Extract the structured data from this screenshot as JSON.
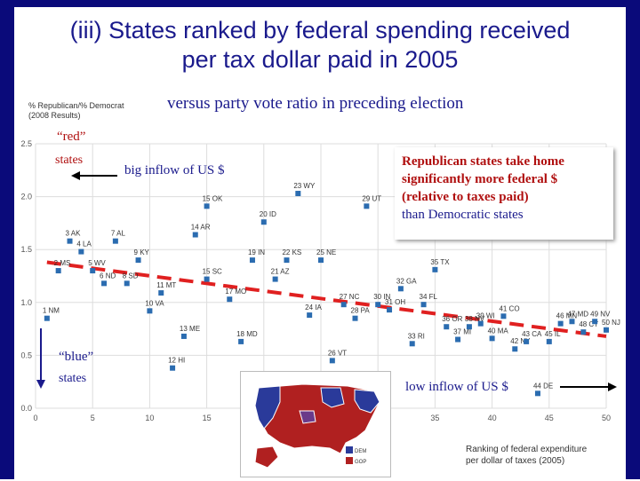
{
  "slide": {
    "title": "(iii) States ranked by federal spending received\nper tax dollar paid in 2005",
    "subtitle": "versus party vote ratio in preceding election"
  },
  "annotations": {
    "red_label": "“red”",
    "red_states": "states",
    "blue_label": "“blue”",
    "blue_states": "states",
    "big_inflow": "big inflow of US $",
    "low_inflow": "low inflow of US $",
    "callout_red": "Republican states take home significantly more federal $ (relative to taxes paid)",
    "callout_blue": "than Democratic states"
  },
  "map": {
    "legend_dem": "DEM",
    "legend_gop": "GOP"
  },
  "colors": {
    "frame": "#0a0a7a",
    "title": "#1a1a8c",
    "point": "#2b6cb0",
    "trend": "#e02020",
    "red_text": "#b01010"
  },
  "chart_data": {
    "type": "scatter",
    "title": "",
    "ylabel": "% Republican/% Democrat\n(2008 Results)",
    "xlabel": "Ranking of federal expenditure\nper dollar of taxes (2005)",
    "xlim": [
      0,
      50
    ],
    "ylim": [
      0,
      2.5
    ],
    "xticks": [
      "0",
      "5",
      "10",
      "15",
      "20",
      "25",
      "30",
      "35",
      "40",
      "45",
      "50"
    ],
    "yticks": [
      "0.0",
      "0.5",
      "1.0",
      "1.5",
      "2.0",
      "2.5"
    ],
    "grid": true,
    "points": [
      {
        "label": "1 NM",
        "x": 1,
        "y": 0.85
      },
      {
        "label": "2 MS",
        "x": 2,
        "y": 1.3
      },
      {
        "label": "3 AK",
        "x": 3,
        "y": 1.58
      },
      {
        "label": "4 LA",
        "x": 4,
        "y": 1.48
      },
      {
        "label": "5 WV",
        "x": 5,
        "y": 1.3
      },
      {
        "label": "6 ND",
        "x": 6,
        "y": 1.18
      },
      {
        "label": "7 AL",
        "x": 7,
        "y": 1.58
      },
      {
        "label": "8 SD",
        "x": 8,
        "y": 1.18
      },
      {
        "label": "9 KY",
        "x": 9,
        "y": 1.4
      },
      {
        "label": "10 VA",
        "x": 10,
        "y": 0.92
      },
      {
        "label": "11 MT",
        "x": 11,
        "y": 1.09
      },
      {
        "label": "12 HI",
        "x": 12,
        "y": 0.38
      },
      {
        "label": "13 ME",
        "x": 13,
        "y": 0.68
      },
      {
        "label": "14 AR",
        "x": 14,
        "y": 1.64
      },
      {
        "label": "15 OK",
        "x": 15,
        "y": 1.91
      },
      {
        "label": "15 SC",
        "x": 15,
        "y": 1.22
      },
      {
        "label": "17 MO",
        "x": 17,
        "y": 1.03
      },
      {
        "label": "18 MD",
        "x": 18,
        "y": 0.63
      },
      {
        "label": "19 IN",
        "x": 19,
        "y": 1.4
      },
      {
        "label": "20 ID",
        "x": 20,
        "y": 1.76
      },
      {
        "label": "21 AZ",
        "x": 21,
        "y": 1.22
      },
      {
        "label": "22 KS",
        "x": 22,
        "y": 1.4
      },
      {
        "label": "23 WY",
        "x": 23,
        "y": 2.03
      },
      {
        "label": "24 IA",
        "x": 24,
        "y": 0.88
      },
      {
        "label": "25 NE",
        "x": 25,
        "y": 1.4
      },
      {
        "label": "26 VT",
        "x": 26,
        "y": 0.45
      },
      {
        "label": "27 NC",
        "x": 27,
        "y": 0.98
      },
      {
        "label": "28 PA",
        "x": 28,
        "y": 0.85
      },
      {
        "label": "29 UT",
        "x": 29,
        "y": 1.91
      },
      {
        "label": "30 IN",
        "x": 30,
        "y": 0.98
      },
      {
        "label": "31 OH",
        "x": 31,
        "y": 0.93
      },
      {
        "label": "32 GA",
        "x": 32,
        "y": 1.13
      },
      {
        "label": "33 RI",
        "x": 33,
        "y": 0.61
      },
      {
        "label": "34 FL",
        "x": 34,
        "y": 0.98
      },
      {
        "label": "35 TX",
        "x": 35,
        "y": 1.31
      },
      {
        "label": "36 OR",
        "x": 36,
        "y": 0.77
      },
      {
        "label": "37 MI",
        "x": 37,
        "y": 0.65
      },
      {
        "label": "38 NV",
        "x": 38,
        "y": 0.77
      },
      {
        "label": "39 WI",
        "x": 39,
        "y": 0.8
      },
      {
        "label": "40 MA",
        "x": 40,
        "y": 0.66
      },
      {
        "label": "41 CO",
        "x": 41,
        "y": 0.87
      },
      {
        "label": "42 NY",
        "x": 42,
        "y": 0.56
      },
      {
        "label": "43 CA",
        "x": 43,
        "y": 0.63
      },
      {
        "label": "44 DE",
        "x": 44,
        "y": 0.14
      },
      {
        "label": "45 IL",
        "x": 45,
        "y": 0.63
      },
      {
        "label": "46 MN",
        "x": 46,
        "y": 0.8
      },
      {
        "label": "47 MD",
        "x": 47,
        "y": 0.82
      },
      {
        "label": "48 CT",
        "x": 48,
        "y": 0.72
      },
      {
        "label": "49 NV",
        "x": 49,
        "y": 0.82
      },
      {
        "label": "50 NJ",
        "x": 50,
        "y": 0.74
      }
    ],
    "trend": {
      "x": [
        1,
        50
      ],
      "y": [
        1.38,
        0.68
      ]
    }
  }
}
